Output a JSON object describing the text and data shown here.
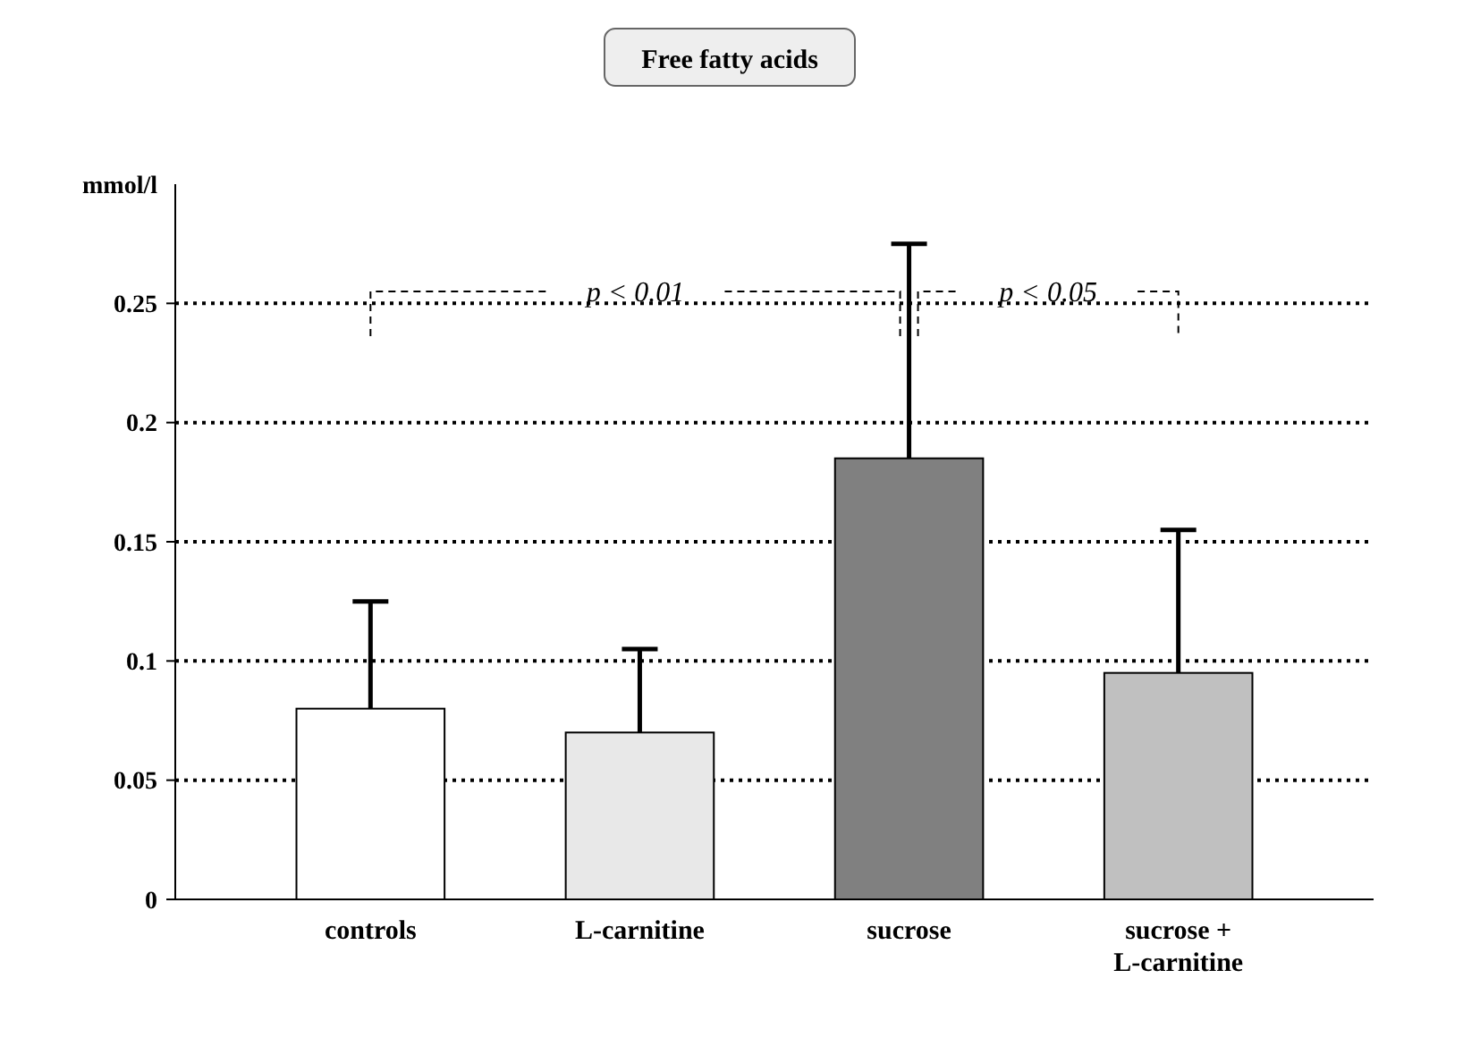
{
  "chart_data": {
    "type": "bar",
    "title": "Free fatty acids",
    "ylabel": "mmol/l",
    "categories": [
      "controls",
      "L-carnitine",
      "sucrose",
      "sucrose + L-carnitine"
    ],
    "values": [
      0.08,
      0.07,
      0.185,
      0.095
    ],
    "colors": [
      "#ffffff",
      "#e8e8e8",
      "#808080",
      "#c0c0c0"
    ],
    "errors": [
      [
        0.08,
        0.125
      ],
      [
        0.07,
        0.105
      ],
      [
        0.185,
        0.275
      ],
      [
        0.095,
        0.155
      ]
    ],
    "ylim": [
      0,
      0.3
    ],
    "yticks": [
      0,
      0.05,
      0.1,
      0.15,
      0.2,
      0.25
    ],
    "grid": "y",
    "line_style": "dotted",
    "annotations": [
      "p < 0.01",
      "p < 0.05"
    ]
  }
}
